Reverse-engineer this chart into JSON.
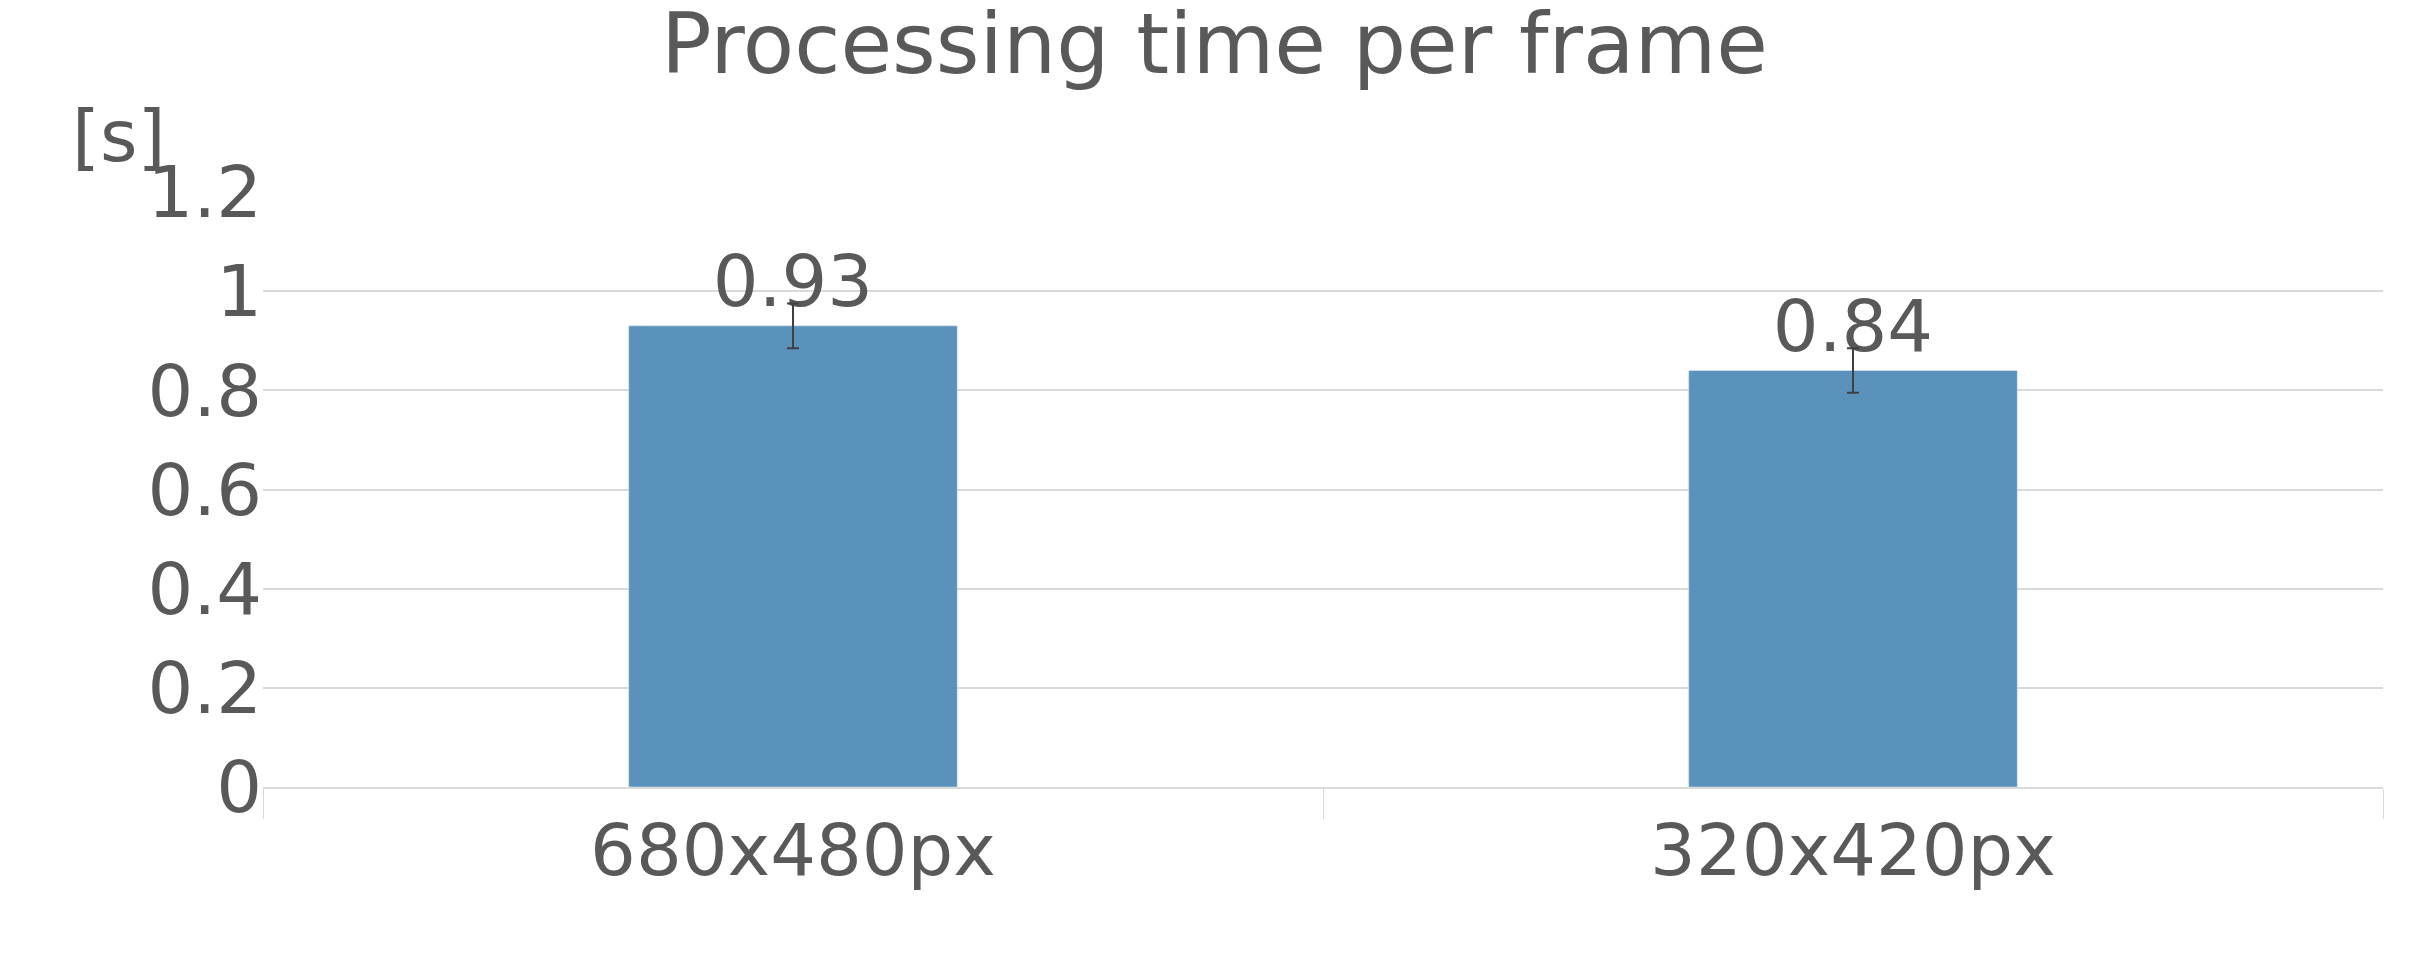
{
  "chart_data": {
    "type": "bar",
    "title": "Processing time per frame",
    "ylabel": "[s]",
    "categories": [
      "680x480px",
      "320x420px"
    ],
    "values": [
      0.93,
      0.84
    ],
    "errors": [
      0.045,
      0.045
    ],
    "color": "#5b92bc",
    "ylim": [
      0,
      1.2
    ],
    "yticks": [
      0,
      0.2,
      0.4,
      0.6,
      0.8,
      1,
      1.2
    ],
    "grid": "y",
    "data_labels": true
  }
}
